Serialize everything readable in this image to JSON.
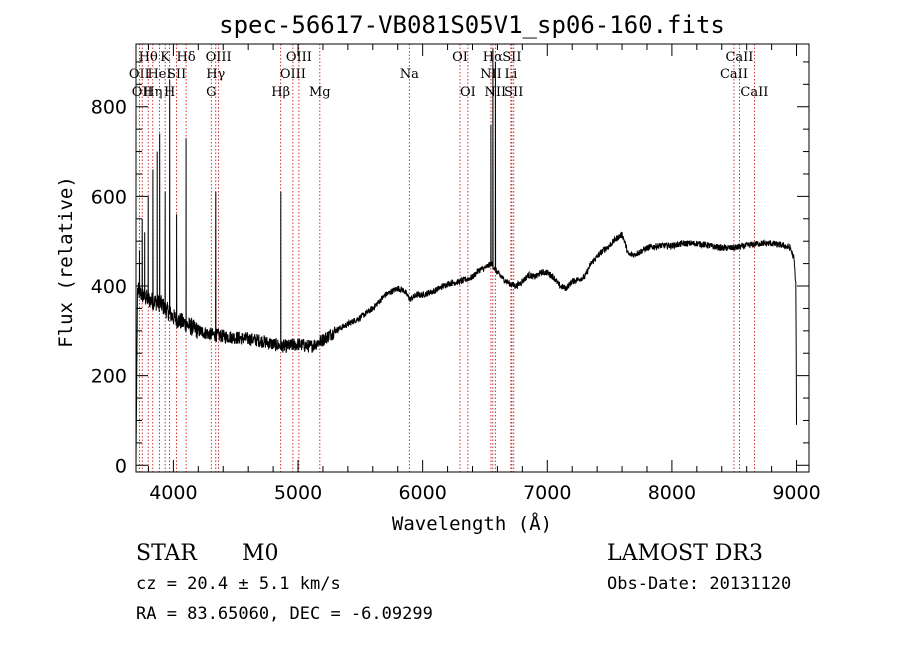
{
  "chart_data": {
    "type": "line",
    "title": "spec-56617-VB081S05V1_sp06-160.fits",
    "xlabel": "Wavelength (Å)",
    "ylabel": "Flux (relative)",
    "xlim": [
      3700,
      9100
    ],
    "ylim": [
      -15,
      940
    ],
    "xticks": [
      {
        "value": 4000,
        "label": "4000"
      },
      {
        "value": 5000,
        "label": "5000"
      },
      {
        "value": 6000,
        "label": "6000"
      },
      {
        "value": 7000,
        "label": "7000"
      },
      {
        "value": 8000,
        "label": "8000"
      },
      {
        "value": 9000,
        "label": "9000"
      }
    ],
    "yticks": [
      {
        "value": 0,
        "label": "0"
      },
      {
        "value": 200,
        "label": "200"
      },
      {
        "value": 400,
        "label": "400"
      },
      {
        "value": 600,
        "label": "600"
      },
      {
        "value": 800,
        "label": "800"
      }
    ],
    "continuum": [
      [
        3700,
        0
      ],
      [
        3705,
        160
      ],
      [
        3712,
        390
      ],
      [
        3750,
        380
      ],
      [
        3800,
        370
      ],
      [
        3850,
        365
      ],
      [
        3900,
        360
      ],
      [
        3950,
        345
      ],
      [
        4000,
        330
      ],
      [
        4100,
        315
      ],
      [
        4200,
        300
      ],
      [
        4300,
        292
      ],
      [
        4400,
        288
      ],
      [
        4500,
        285
      ],
      [
        4600,
        282
      ],
      [
        4700,
        278
      ],
      [
        4800,
        270
      ],
      [
        4900,
        265
      ],
      [
        5000,
        270
      ],
      [
        5100,
        265
      ],
      [
        5200,
        280
      ],
      [
        5300,
        300
      ],
      [
        5400,
        315
      ],
      [
        5500,
        330
      ],
      [
        5600,
        350
      ],
      [
        5700,
        380
      ],
      [
        5800,
        395
      ],
      [
        5850,
        390
      ],
      [
        5900,
        370
      ],
      [
        5950,
        380
      ],
      [
        6000,
        380
      ],
      [
        6100,
        390
      ],
      [
        6200,
        405
      ],
      [
        6300,
        410
      ],
      [
        6400,
        420
      ],
      [
        6450,
        435
      ],
      [
        6500,
        440
      ],
      [
        6550,
        450
      ],
      [
        6600,
        430
      ],
      [
        6650,
        415
      ],
      [
        6700,
        405
      ],
      [
        6750,
        400
      ],
      [
        6800,
        410
      ],
      [
        6850,
        425
      ],
      [
        6900,
        420
      ],
      [
        6950,
        430
      ],
      [
        7000,
        430
      ],
      [
        7050,
        420
      ],
      [
        7100,
        400
      ],
      [
        7150,
        395
      ],
      [
        7200,
        410
      ],
      [
        7300,
        420
      ],
      [
        7350,
        450
      ],
      [
        7400,
        465
      ],
      [
        7450,
        480
      ],
      [
        7500,
        490
      ],
      [
        7550,
        505
      ],
      [
        7600,
        515
      ],
      [
        7620,
        500
      ],
      [
        7650,
        470
      ],
      [
        7700,
        470
      ],
      [
        7800,
        485
      ],
      [
        7900,
        490
      ],
      [
        8000,
        490
      ],
      [
        8100,
        495
      ],
      [
        8200,
        495
      ],
      [
        8300,
        490
      ],
      [
        8400,
        485
      ],
      [
        8500,
        485
      ],
      [
        8600,
        490
      ],
      [
        8700,
        495
      ],
      [
        8800,
        495
      ],
      [
        8900,
        490
      ],
      [
        8950,
        485
      ],
      [
        8980,
        460
      ],
      [
        8995,
        400
      ],
      [
        9000,
        90
      ]
    ],
    "emission_lines": [
      [
        3727,
        480
      ],
      [
        3750,
        550
      ],
      [
        3770,
        520
      ],
      [
        3798,
        600
      ],
      [
        3835,
        660
      ],
      [
        3870,
        700
      ],
      [
        3889,
        740
      ],
      [
        3934,
        610
      ],
      [
        3970,
        860
      ],
      [
        4026,
        560
      ],
      [
        4102,
        730
      ],
      [
        4340,
        610
      ],
      [
        4861,
        610
      ],
      [
        6548,
        760
      ],
      [
        6563,
        930
      ],
      [
        6583,
        900
      ]
    ],
    "line_markers": [
      {
        "wave": 3727,
        "label": "OII",
        "row": 2
      },
      {
        "wave": 3750,
        "label": "OII",
        "row": 3
      },
      {
        "wave": 3798,
        "label": "Hθ",
        "row": 1
      },
      {
        "wave": 3835,
        "label": "Hη",
        "row": 3
      },
      {
        "wave": 3889,
        "label": "HeI",
        "row": 2
      },
      {
        "wave": 3934,
        "label": "K",
        "row": 1
      },
      {
        "wave": 3970,
        "label": "H",
        "row": 3
      },
      {
        "wave": 4026,
        "label": "SII",
        "row": 2
      },
      {
        "wave": 4102,
        "label": "Hδ",
        "row": 1
      },
      {
        "wave": 4304,
        "label": "G",
        "row": 3
      },
      {
        "wave": 4340,
        "label": "Hγ",
        "row": 2
      },
      {
        "wave": 4363,
        "label": "OIII",
        "row": 1
      },
      {
        "wave": 4861,
        "label": "Hβ",
        "row": 3
      },
      {
        "wave": 4959,
        "label": "OIII",
        "row": 2
      },
      {
        "wave": 5007,
        "label": "OIII",
        "row": 1
      },
      {
        "wave": 5175,
        "label": "Mg",
        "row": 3
      },
      {
        "wave": 5893,
        "label": "Na",
        "row": 2
      },
      {
        "wave": 6300,
        "label": "OI",
        "row": 1
      },
      {
        "wave": 6363,
        "label": "OI",
        "row": 3
      },
      {
        "wave": 6548,
        "label": "NII",
        "row": 2
      },
      {
        "wave": 6563,
        "label": "Hα",
        "row": 1
      },
      {
        "wave": 6583,
        "label": "NII",
        "row": 3
      },
      {
        "wave": 6708,
        "label": "Li",
        "row": 2
      },
      {
        "wave": 6716,
        "label": "SII",
        "row": 1
      },
      {
        "wave": 6731,
        "label": "SII",
        "row": 3
      },
      {
        "wave": 8498,
        "label": "CaII",
        "row": 2
      },
      {
        "wave": 8542,
        "label": "CaII",
        "row": 1
      },
      {
        "wave": 8662,
        "label": "CaII",
        "row": 3
      }
    ]
  },
  "info": {
    "class": "STAR",
    "subclass": "M0",
    "survey": "LAMOST DR3",
    "cz": "cz = 20.4 ± 5.1 km/s",
    "obs_date": "Obs-Date: 20131120",
    "coords": "RA =  83.65060, DEC =  -6.09299"
  }
}
